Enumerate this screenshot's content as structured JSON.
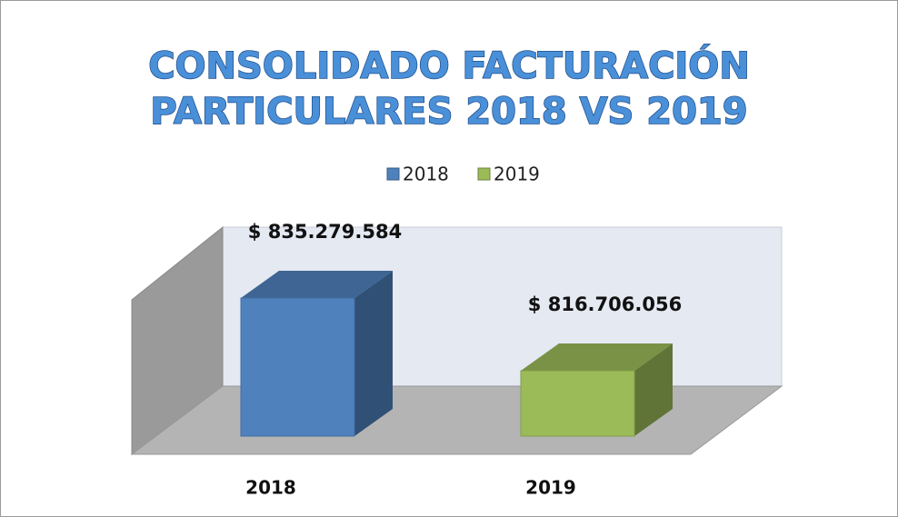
{
  "chart_data": {
    "type": "bar3d",
    "title": "CONSOLIDADO FACTURACIÓN",
    "subtitle": "PARTICULARES 2018 VS 2019",
    "categories": [
      "2018",
      "2019"
    ],
    "series": [
      {
        "name": "2018",
        "color": "#4f81bd",
        "values": [
          835279584,
          null
        ],
        "value_labels": [
          "$ 835.279.584",
          null
        ]
      },
      {
        "name": "2019",
        "color": "#9bbb59",
        "values": [
          null,
          816706056
        ],
        "value_labels": [
          null,
          "$ 816.706.056"
        ]
      }
    ],
    "ylim": [
      800000000,
      855000000
    ],
    "legend": "top"
  }
}
